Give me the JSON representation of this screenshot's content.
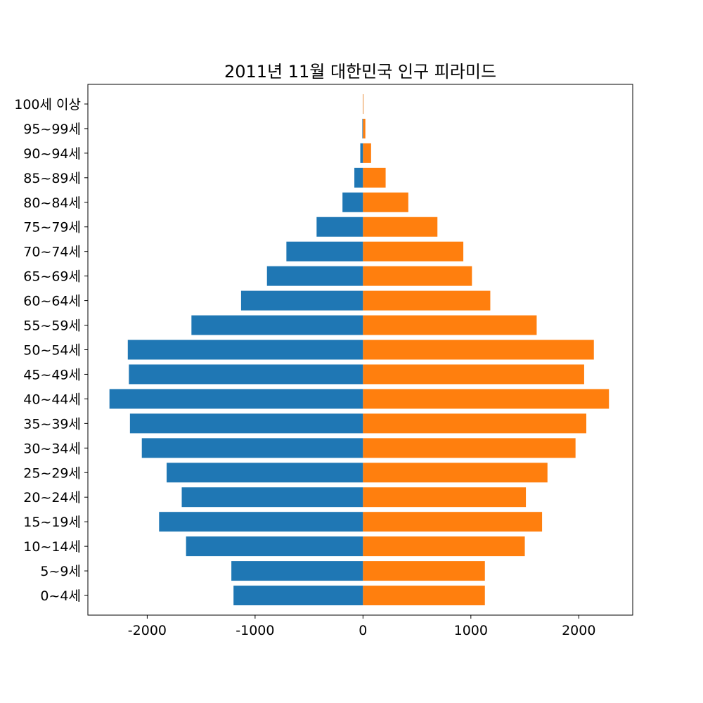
{
  "chart_data": {
    "type": "bar",
    "orientation": "horizontal",
    "title": "2011년 11월 대한민국 인구 피라미드",
    "xlabel": "",
    "ylabel": "",
    "xlim": [
      -2550,
      2500
    ],
    "xticks": [
      -2000,
      -1000,
      0,
      1000,
      2000
    ],
    "categories": [
      "0~4세",
      "5~9세",
      "10~14세",
      "15~19세",
      "20~24세",
      "25~29세",
      "30~34세",
      "35~39세",
      "40~44세",
      "45~49세",
      "50~54세",
      "55~59세",
      "60~64세",
      "65~69세",
      "70~74세",
      "75~79세",
      "80~84세",
      "85~89세",
      "90~94세",
      "95~99세",
      "100세 이상"
    ],
    "series": [
      {
        "color": "#1f77b4",
        "values": [
          -1200,
          -1220,
          -1640,
          -1890,
          -1680,
          -1820,
          -2050,
          -2160,
          -2350,
          -2170,
          -2180,
          -1590,
          -1130,
          -890,
          -710,
          -430,
          -190,
          -80,
          -25,
          -6,
          -1
        ]
      },
      {
        "color": "#ff7f0e",
        "values": [
          1130,
          1130,
          1500,
          1660,
          1510,
          1710,
          1970,
          2070,
          2280,
          2050,
          2140,
          1610,
          1180,
          1010,
          930,
          690,
          420,
          210,
          75,
          22,
          5
        ]
      }
    ],
    "grid": false,
    "legend": "none"
  }
}
